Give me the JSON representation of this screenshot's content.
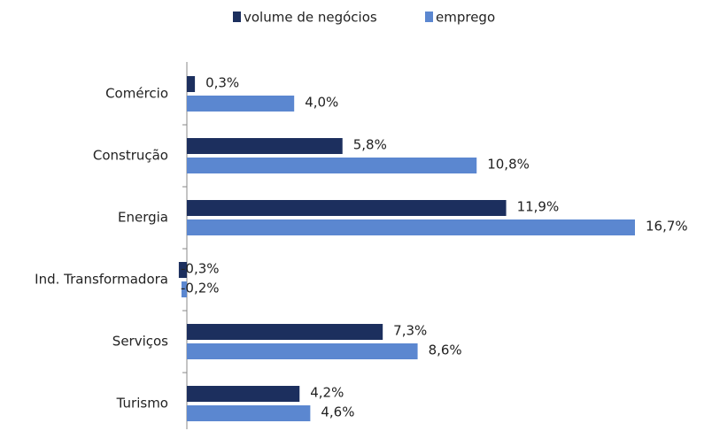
{
  "chart_data": {
    "type": "bar",
    "orientation": "horizontal",
    "categories": [
      "Comércio",
      "Construção",
      "Energia",
      "Ind. Transformadora",
      "Serviços",
      "Turismo"
    ],
    "series": [
      {
        "name": "volume de negócios",
        "color": "#1c2f5e",
        "values": [
          0.3,
          5.8,
          11.9,
          -0.3,
          7.3,
          4.2
        ],
        "value_labels": [
          "0,3%",
          "5,8%",
          "11,9%",
          "-0,3%",
          "7,3%",
          "4,2%"
        ]
      },
      {
        "name": "emprego",
        "color": "#5b87d0",
        "values": [
          4.0,
          10.8,
          16.7,
          -0.2,
          8.6,
          4.6
        ],
        "value_labels": [
          "4,0%",
          "10,8%",
          "16,7%",
          "-0,2%",
          "8,6%",
          "4,6%"
        ]
      }
    ],
    "legend": "top"
  }
}
